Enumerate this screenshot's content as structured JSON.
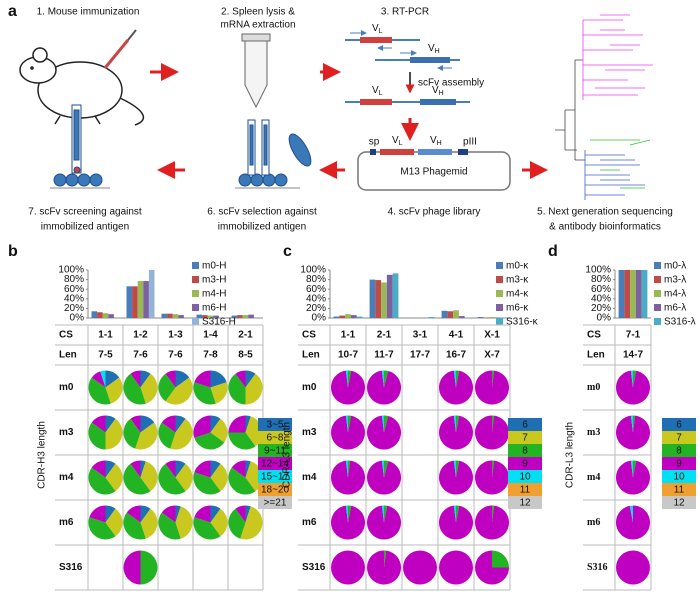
{
  "panel_labels": [
    "a",
    "b",
    "c",
    "d"
  ],
  "diagram": {
    "steps": [
      "1. Mouse immunization",
      "2. Spleen lysis &",
      "mRNA extraction",
      "3. RT-PCR",
      "scFv assembly",
      "sp",
      "pIII",
      "M13 Phagemid",
      "4. scFv phage library",
      "5. Next generation sequencing",
      "& antibody bioinformatics",
      "6. scFv selection against",
      "immobilized antigen",
      "7. scFv screening against",
      "immobilized antigen"
    ],
    "gene_labels": [
      [
        "V",
        "L"
      ],
      [
        "V",
        "H"
      ],
      [
        "V",
        "L"
      ],
      [
        "V",
        "H"
      ],
      [
        "V",
        "L"
      ],
      [
        "V",
        "H"
      ]
    ]
  },
  "chart_data": [
    {
      "type": "bar",
      "y_label": "CDR-H3 length",
      "categories": [
        "1-1",
        "1-2",
        "1-3",
        "1-4",
        "2-1"
      ],
      "cs_label": "CS",
      "len_label": "Len",
      "lengths": [
        "7-5",
        "7-6",
        "7-6",
        "7-8",
        "8-5"
      ],
      "ylim": [
        0,
        100
      ],
      "yticks": [
        {
          "value": 0,
          "label": "0%"
        },
        {
          "value": 20,
          "label": "20%"
        },
        {
          "value": 40,
          "label": "40%"
        },
        {
          "value": 60,
          "label": "60%"
        },
        {
          "value": 80,
          "label": "80%"
        },
        {
          "value": 100,
          "label": "100%"
        }
      ],
      "series": [
        {
          "name": "m0-H",
          "color": "#4a7ebb",
          "values": [
            14,
            66,
            9,
            7,
            5
          ]
        },
        {
          "name": "m3-H",
          "color": "#be4b48",
          "values": [
            12,
            66,
            9,
            6,
            6
          ]
        },
        {
          "name": "m4-H",
          "color": "#98b954",
          "values": [
            10,
            77,
            8,
            5,
            6
          ]
        },
        {
          "name": "m6-H",
          "color": "#7d60a0",
          "values": [
            8,
            77,
            6,
            5,
            7
          ]
        },
        {
          "name": "S316-H",
          "color": "#95b3d7",
          "values": [
            0,
            100,
            0,
            0,
            0
          ]
        }
      ],
      "pie_legend": {
        "labels": [
          "3~5",
          "6~8",
          "9~11",
          "12~14",
          "15~17",
          "18~20",
          ">=21"
        ],
        "colors": [
          "#1f6fb5",
          "#c8c81e",
          "#22b422",
          "#c000c0",
          "#00e0f0",
          "#f0a030",
          "#c8c8c8"
        ]
      },
      "pie_rows": [
        {
          "name": "m0",
          "pies": [
            [
              15,
              30,
              40,
              10,
              5,
              0,
              0
            ],
            [
              10,
              35,
              45,
              10,
              0,
              0,
              0
            ],
            [
              15,
              45,
              30,
              10,
              0,
              0,
              0
            ],
            [
              20,
              25,
              35,
              20,
              0,
              0,
              0
            ],
            [
              10,
              40,
              40,
              10,
              0,
              0,
              0
            ]
          ]
        },
        {
          "name": "m3",
          "pies": [
            [
              10,
              40,
              35,
              15,
              0,
              0,
              0
            ],
            [
              15,
              40,
              35,
              10,
              0,
              0,
              0
            ],
            [
              10,
              45,
              30,
              15,
              0,
              0,
              0
            ],
            [
              10,
              25,
              35,
              30,
              0,
              0,
              0
            ],
            [
              5,
              35,
              35,
              25,
              0,
              0,
              0
            ]
          ]
        },
        {
          "name": "m4",
          "pies": [
            [
              10,
              30,
              45,
              15,
              0,
              0,
              0
            ],
            [
              5,
              35,
              50,
              10,
              0,
              0,
              0
            ],
            [
              10,
              30,
              50,
              10,
              0,
              0,
              0
            ],
            [
              10,
              30,
              40,
              20,
              0,
              0,
              0
            ],
            [
              5,
              35,
              45,
              15,
              0,
              0,
              0
            ]
          ]
        },
        {
          "name": "m6",
          "pies": [
            [
              10,
              30,
              40,
              20,
              0,
              0,
              0
            ],
            [
              10,
              35,
              40,
              15,
              0,
              0,
              0
            ],
            [
              5,
              40,
              40,
              15,
              0,
              0,
              0
            ],
            [
              10,
              30,
              40,
              20,
              0,
              0,
              0
            ],
            [
              5,
              50,
              35,
              10,
              0,
              0,
              0
            ]
          ]
        },
        {
          "name": "S316",
          "pies": [
            null,
            [
              0,
              0,
              50,
              50,
              0,
              0,
              0
            ],
            null,
            null,
            null
          ]
        }
      ]
    },
    {
      "type": "bar",
      "y_label": "CDR-L3 length",
      "categories": [
        "1-1",
        "2-1",
        "3-1",
        "4-1",
        "X-1"
      ],
      "cs_label": "CS",
      "len_label": "Len",
      "lengths": [
        "10-7",
        "11-7",
        "17-7",
        "16-7",
        "X-7"
      ],
      "ylim": [
        0,
        100
      ],
      "yticks": [
        {
          "value": 0,
          "label": "0%"
        },
        {
          "value": 20,
          "label": "20%"
        },
        {
          "value": 40,
          "label": "40%"
        },
        {
          "value": 60,
          "label": "60%"
        },
        {
          "value": 80,
          "label": "80%"
        },
        {
          "value": 100,
          "label": "100%"
        }
      ],
      "series": [
        {
          "name": "m0-κ",
          "color": "#4a7ebb",
          "values": [
            3,
            80,
            0,
            15,
            2
          ]
        },
        {
          "name": "m3-κ",
          "color": "#be4b48",
          "values": [
            5,
            79,
            0,
            14,
            1
          ]
        },
        {
          "name": "m4-κ",
          "color": "#98b954",
          "values": [
            8,
            74,
            0,
            16,
            2
          ]
        },
        {
          "name": "m6-κ",
          "color": "#7d60a0",
          "values": [
            6,
            90,
            0,
            4,
            1
          ]
        },
        {
          "name": "S316-κ",
          "color": "#4bacc6",
          "values": [
            3,
            93,
            2,
            1,
            1
          ]
        }
      ],
      "pie_legend": {
        "labels": [
          "6",
          "7",
          "8",
          "9",
          "10",
          "11",
          "12"
        ],
        "colors": [
          "#1f6fb5",
          "#c8c81e",
          "#22b422",
          "#c000c0",
          "#00e0f0",
          "#f0a030",
          "#c8c8c8"
        ]
      },
      "pie_rows": [
        {
          "name": "m0",
          "pies": [
            [
              0,
              0,
              3,
              95,
              2,
              0,
              0
            ],
            [
              0,
              0,
              4,
              94,
              2,
              0,
              0
            ],
            null,
            [
              0,
              0,
              3,
              95,
              2,
              0,
              0
            ],
            [
              0,
              0,
              2,
              98,
              0,
              0,
              0
            ]
          ]
        },
        {
          "name": "m3",
          "pies": [
            [
              0,
              0,
              3,
              95,
              2,
              0,
              0
            ],
            [
              0,
              0,
              4,
              94,
              2,
              0,
              0
            ],
            null,
            [
              0,
              0,
              3,
              95,
              2,
              0,
              0
            ],
            [
              0,
              0,
              2,
              98,
              0,
              0,
              0
            ]
          ]
        },
        {
          "name": "m4",
          "pies": [
            [
              0,
              0,
              2,
              96,
              2,
              0,
              0
            ],
            [
              0,
              0,
              4,
              94,
              2,
              0,
              0
            ],
            null,
            [
              0,
              0,
              3,
              95,
              2,
              0,
              0
            ],
            [
              0,
              0,
              2,
              98,
              0,
              0,
              0
            ]
          ]
        },
        {
          "name": "m6",
          "pies": [
            [
              0,
              0,
              3,
              95,
              2,
              0,
              0
            ],
            [
              0,
              0,
              3,
              95,
              2,
              0,
              0
            ],
            null,
            [
              0,
              0,
              3,
              95,
              2,
              0,
              0
            ],
            [
              0,
              0,
              2,
              98,
              0,
              0,
              0
            ]
          ]
        },
        {
          "name": "S316",
          "pies": [
            [
              0,
              0,
              0,
              100,
              0,
              0,
              0
            ],
            [
              0,
              0,
              2,
              98,
              0,
              0,
              0
            ],
            [
              0,
              0,
              0,
              100,
              0,
              0,
              0
            ],
            [
              0,
              0,
              0,
              100,
              0,
              0,
              0
            ],
            [
              0,
              0,
              25,
              75,
              0,
              0,
              0
            ]
          ]
        }
      ]
    },
    {
      "type": "bar",
      "y_label": "CDR-L3 length",
      "categories": [
        "7-1"
      ],
      "cs_label": "CS",
      "len_label": "Len",
      "lengths": [
        "14-7"
      ],
      "ylim": [
        0,
        100
      ],
      "yticks": [
        {
          "value": 0,
          "label": "0%"
        },
        {
          "value": 20,
          "label": "20%"
        },
        {
          "value": 40,
          "label": "40%"
        },
        {
          "value": 60,
          "label": "60%"
        },
        {
          "value": 80,
          "label": "80%"
        },
        {
          "value": 100,
          "label": "100%"
        }
      ],
      "series": [
        {
          "name": "m0-λ",
          "color": "#4a7ebb",
          "values": [
            100
          ]
        },
        {
          "name": "m3-λ",
          "color": "#be4b48",
          "values": [
            100
          ]
        },
        {
          "name": "m4-λ",
          "color": "#98b954",
          "values": [
            100
          ]
        },
        {
          "name": "m6-λ",
          "color": "#7d60a0",
          "values": [
            100
          ]
        },
        {
          "name": "S316-λ",
          "color": "#4bacc6",
          "values": [
            100
          ]
        }
      ],
      "pie_legend": {
        "labels": [
          "6",
          "7",
          "8",
          "9",
          "10",
          "11",
          "12"
        ],
        "colors": [
          "#1f6fb5",
          "#c8c81e",
          "#22b422",
          "#c000c0",
          "#00e0f0",
          "#f0a030",
          "#c8c8c8"
        ]
      },
      "pie_rows": [
        {
          "name": "m0",
          "pies": [
            [
              0,
              0,
              3,
              95,
              2,
              0,
              0
            ]
          ]
        },
        {
          "name": "m3",
          "pies": [
            [
              0,
              0,
              2,
              96,
              2,
              0,
              0
            ]
          ]
        },
        {
          "name": "m4",
          "pies": [
            [
              0,
              0,
              3,
              95,
              2,
              0,
              0
            ]
          ]
        },
        {
          "name": "m6",
          "pies": [
            [
              0,
              0,
              0,
              97,
              3,
              0,
              0
            ]
          ]
        },
        {
          "name": "S316",
          "pies": [
            [
              0,
              0,
              0,
              100,
              0,
              0,
              0
            ]
          ]
        }
      ]
    }
  ]
}
